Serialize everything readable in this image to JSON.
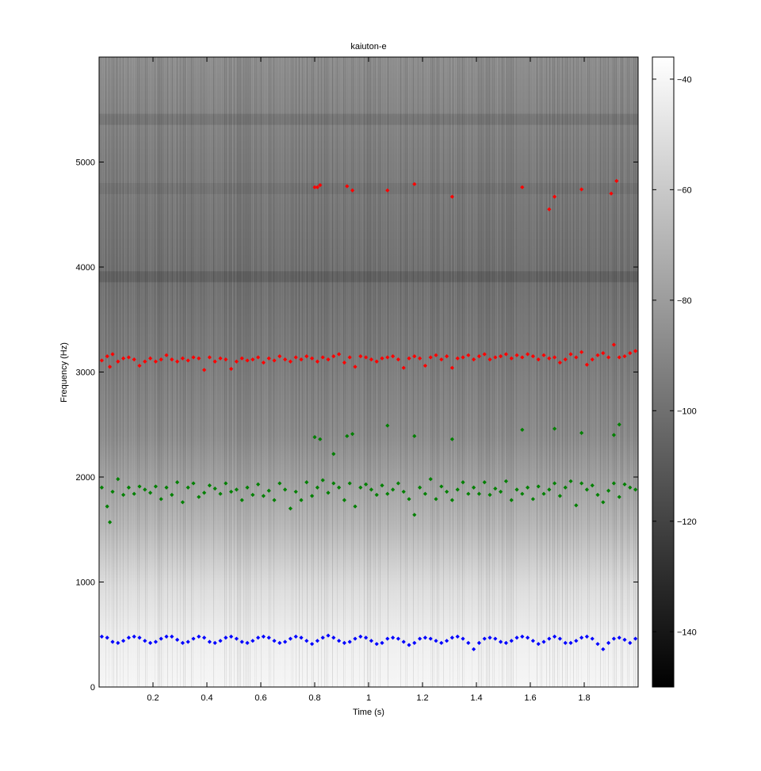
{
  "chart_data": {
    "type": "scatter",
    "title": "kaiuton-e",
    "xlabel": "Time (s)",
    "ylabel": "Frequency (Hz)",
    "xlim": [
      0,
      2.0
    ],
    "ylim": [
      0,
      6000
    ],
    "xticks": [
      0.2,
      0.4,
      0.6,
      0.8,
      1,
      1.2,
      1.4,
      1.6,
      1.8
    ],
    "yticks": [
      0,
      1000,
      2000,
      3000,
      4000,
      5000
    ],
    "background": "grayscale spectrogram",
    "colorbar": {
      "min": -150,
      "max": -36,
      "ticks": [
        -40,
        -60,
        -80,
        -100,
        -120,
        -140
      ],
      "colormap": "gray"
    },
    "series": [
      {
        "color": "#0000ff",
        "x": [
          0.01,
          0.03,
          0.05,
          0.07,
          0.09,
          0.11,
          0.13,
          0.15,
          0.17,
          0.19,
          0.21,
          0.23,
          0.25,
          0.27,
          0.29,
          0.31,
          0.33,
          0.35,
          0.37,
          0.39,
          0.41,
          0.43,
          0.45,
          0.47,
          0.49,
          0.51,
          0.53,
          0.55,
          0.57,
          0.59,
          0.61,
          0.63,
          0.65,
          0.67,
          0.69,
          0.71,
          0.73,
          0.75,
          0.77,
          0.79,
          0.81,
          0.83,
          0.85,
          0.87,
          0.89,
          0.91,
          0.93,
          0.95,
          0.97,
          0.99,
          1.01,
          1.03,
          1.05,
          1.07,
          1.09,
          1.11,
          1.13,
          1.15,
          1.17,
          1.19,
          1.21,
          1.23,
          1.25,
          1.27,
          1.29,
          1.31,
          1.33,
          1.35,
          1.37,
          1.39,
          1.41,
          1.43,
          1.45,
          1.47,
          1.49,
          1.51,
          1.53,
          1.55,
          1.57,
          1.59,
          1.61,
          1.63,
          1.65,
          1.67,
          1.69,
          1.71,
          1.73,
          1.75,
          1.77,
          1.79,
          1.81,
          1.83,
          1.85,
          1.87,
          1.89,
          1.91,
          1.93,
          1.95,
          1.97,
          1.99
        ],
        "y": [
          480,
          470,
          430,
          420,
          440,
          470,
          480,
          470,
          440,
          420,
          430,
          460,
          480,
          480,
          450,
          420,
          430,
          460,
          480,
          470,
          430,
          420,
          440,
          470,
          480,
          460,
          430,
          420,
          440,
          470,
          480,
          470,
          440,
          420,
          430,
          460,
          480,
          470,
          440,
          410,
          440,
          470,
          490,
          470,
          440,
          420,
          430,
          460,
          480,
          470,
          440,
          410,
          420,
          460,
          470,
          460,
          430,
          400,
          420,
          460,
          470,
          460,
          440,
          420,
          440,
          470,
          480,
          460,
          420,
          360,
          420,
          460,
          470,
          460,
          430,
          420,
          440,
          470,
          480,
          470,
          440,
          410,
          430,
          460,
          480,
          460,
          420,
          420,
          440,
          470,
          480,
          460,
          410,
          360,
          420,
          460,
          470,
          450,
          420,
          460
        ]
      },
      {
        "color": "#008000",
        "x": [
          0.01,
          0.03,
          0.04,
          0.05,
          0.07,
          0.09,
          0.11,
          0.13,
          0.15,
          0.17,
          0.19,
          0.21,
          0.23,
          0.25,
          0.27,
          0.29,
          0.31,
          0.33,
          0.35,
          0.37,
          0.39,
          0.41,
          0.43,
          0.45,
          0.47,
          0.49,
          0.51,
          0.53,
          0.55,
          0.57,
          0.59,
          0.61,
          0.63,
          0.65,
          0.67,
          0.69,
          0.71,
          0.73,
          0.75,
          0.77,
          0.79,
          0.81,
          0.83,
          0.85,
          0.87,
          0.89,
          0.91,
          0.93,
          0.95,
          0.97,
          0.99,
          1.01,
          1.03,
          1.05,
          1.07,
          1.09,
          1.11,
          1.13,
          1.15,
          1.17,
          1.19,
          1.21,
          1.23,
          1.25,
          1.27,
          1.29,
          1.31,
          1.33,
          1.35,
          1.37,
          1.39,
          1.41,
          1.43,
          1.45,
          1.47,
          1.49,
          1.51,
          1.53,
          1.55,
          1.57,
          1.59,
          1.61,
          1.63,
          1.65,
          1.67,
          1.69,
          1.71,
          1.73,
          1.75,
          1.77,
          1.79,
          1.81,
          1.83,
          1.85,
          1.87,
          1.89,
          1.91,
          1.93,
          1.95,
          1.97,
          1.99,
          0.8,
          0.82,
          0.92,
          0.94,
          0.87,
          1.07,
          1.17,
          1.31,
          1.57,
          1.69,
          1.79,
          1.91,
          1.93
        ],
        "y": [
          1900,
          1720,
          1570,
          1860,
          1980,
          1830,
          1900,
          1840,
          1910,
          1880,
          1850,
          1910,
          1790,
          1900,
          1830,
          1950,
          1760,
          1900,
          1940,
          1810,
          1850,
          1920,
          1890,
          1840,
          1940,
          1860,
          1880,
          1780,
          1900,
          1830,
          1930,
          1820,
          1870,
          1780,
          1940,
          1880,
          1700,
          1860,
          1780,
          1950,
          1820,
          1900,
          1970,
          1850,
          1940,
          1900,
          1780,
          1940,
          1720,
          1900,
          1930,
          1880,
          1830,
          1920,
          1840,
          1880,
          1940,
          1860,
          1790,
          1640,
          1900,
          1840,
          1980,
          1790,
          1910,
          1860,
          1780,
          1880,
          1950,
          1840,
          1900,
          1840,
          1950,
          1830,
          1890,
          1860,
          1960,
          1780,
          1880,
          1840,
          1900,
          1790,
          1910,
          1840,
          1880,
          1940,
          1820,
          1900,
          1960,
          1730,
          1940,
          1880,
          1920,
          1830,
          1760,
          1870,
          1940,
          1810,
          1930,
          1900,
          1880,
          2380,
          2360,
          2390,
          2410,
          2220,
          2490,
          2390,
          2360,
          2450,
          2460,
          2420,
          2400,
          2500
        ]
      },
      {
        "color": "#ff0000",
        "x": [
          0.01,
          0.03,
          0.04,
          0.05,
          0.07,
          0.09,
          0.11,
          0.13,
          0.15,
          0.17,
          0.19,
          0.21,
          0.23,
          0.25,
          0.27,
          0.29,
          0.31,
          0.33,
          0.35,
          0.37,
          0.39,
          0.41,
          0.43,
          0.45,
          0.47,
          0.49,
          0.51,
          0.53,
          0.55,
          0.57,
          0.59,
          0.61,
          0.63,
          0.65,
          0.67,
          0.69,
          0.71,
          0.73,
          0.75,
          0.77,
          0.79,
          0.81,
          0.83,
          0.85,
          0.87,
          0.89,
          0.91,
          0.93,
          0.95,
          0.97,
          0.99,
          1.01,
          1.03,
          1.05,
          1.07,
          1.09,
          1.11,
          1.13,
          1.15,
          1.17,
          1.19,
          1.21,
          1.23,
          1.25,
          1.27,
          1.29,
          1.31,
          1.33,
          1.35,
          1.37,
          1.39,
          1.41,
          1.43,
          1.45,
          1.47,
          1.49,
          1.51,
          1.53,
          1.55,
          1.57,
          1.59,
          1.61,
          1.63,
          1.65,
          1.67,
          1.69,
          1.71,
          1.73,
          1.75,
          1.77,
          1.79,
          1.81,
          1.83,
          1.85,
          1.87,
          1.89,
          1.91,
          1.93,
          1.95,
          1.97,
          1.99,
          0.8,
          0.81,
          0.82,
          0.92,
          0.94,
          1.07,
          1.17,
          1.31,
          1.57,
          1.67,
          1.69,
          1.79,
          1.9,
          1.92
        ],
        "y": [
          3110,
          3150,
          3050,
          3170,
          3100,
          3130,
          3140,
          3120,
          3060,
          3100,
          3130,
          3100,
          3120,
          3160,
          3120,
          3100,
          3130,
          3110,
          3140,
          3130,
          3020,
          3140,
          3100,
          3130,
          3120,
          3030,
          3100,
          3130,
          3110,
          3120,
          3140,
          3090,
          3130,
          3110,
          3150,
          3120,
          3100,
          3140,
          3120,
          3150,
          3130,
          3100,
          3140,
          3120,
          3150,
          3170,
          3090,
          3140,
          3050,
          3150,
          3140,
          3120,
          3100,
          3130,
          3140,
          3150,
          3120,
          3040,
          3130,
          3150,
          3130,
          3060,
          3140,
          3160,
          3120,
          3150,
          3040,
          3130,
          3140,
          3160,
          3120,
          3150,
          3170,
          3120,
          3140,
          3150,
          3170,
          3130,
          3160,
          3140,
          3170,
          3150,
          3120,
          3160,
          3130,
          3140,
          3090,
          3120,
          3170,
          3140,
          3190,
          3070,
          3120,
          3160,
          3180,
          3140,
          3260,
          3140,
          3150,
          3180,
          3200,
          4760,
          4760,
          4780,
          4770,
          4730,
          4730,
          4790,
          4670,
          4760,
          4550,
          4670,
          4740,
          4700,
          4820
        ]
      }
    ]
  }
}
